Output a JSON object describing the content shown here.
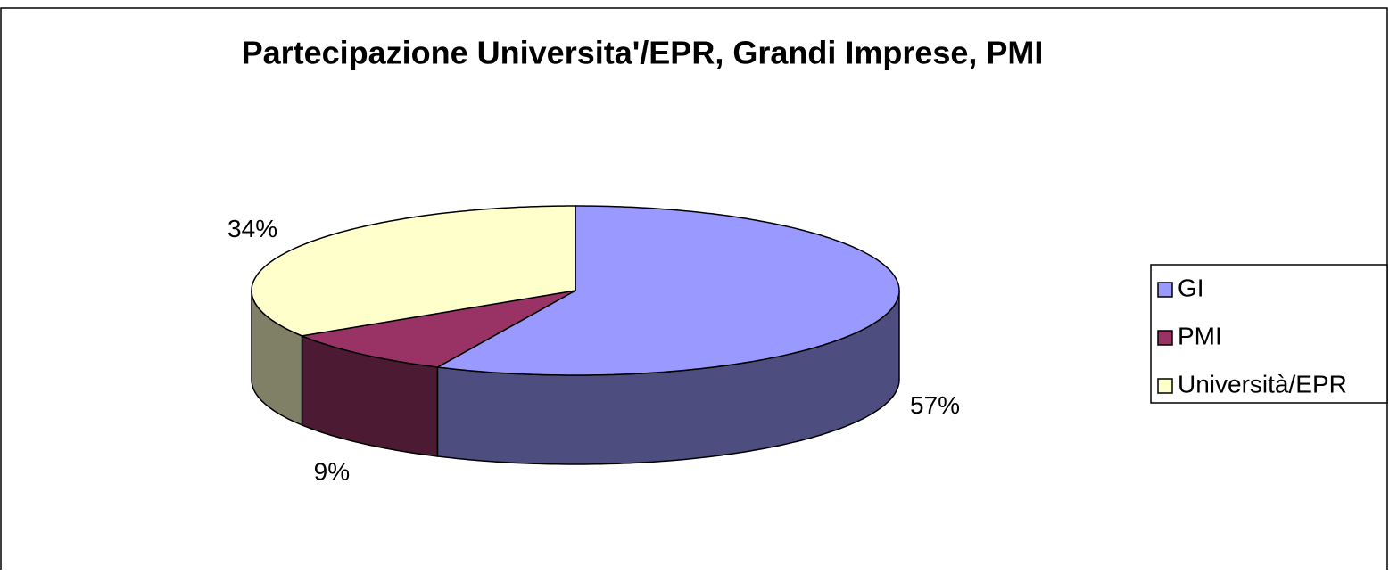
{
  "chart_data": {
    "type": "pie3d",
    "title": "Partecipazione Universita'/EPR, Grandi Imprese, PMI",
    "categories": [
      "GI",
      "PMI",
      "Università/EPR"
    ],
    "values": [
      57,
      9,
      34
    ],
    "value_labels": [
      "57%",
      "9%",
      "34%"
    ],
    "colors": [
      "#9999ff",
      "#993366",
      "#ffffcc"
    ],
    "legend": "right"
  }
}
